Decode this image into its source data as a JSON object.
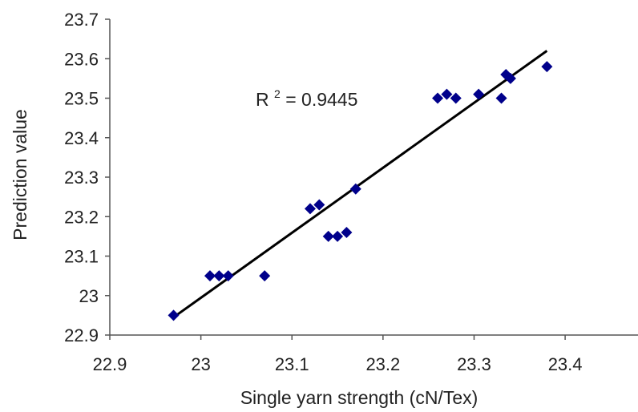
{
  "chart_data": {
    "type": "scatter",
    "title": "",
    "xlabel": "Single yarn strength (cN/Tex)",
    "ylabel": "Prediction value",
    "xlim": [
      22.9,
      23.48
    ],
    "ylim": [
      22.9,
      23.7
    ],
    "x_ticks": [
      22.9,
      23.0,
      23.1,
      23.2,
      23.3,
      23.4
    ],
    "x_tick_labels": [
      "22.9",
      "23",
      "23.1",
      "23.2",
      "23.3",
      "23.4"
    ],
    "y_ticks": [
      22.9,
      23.0,
      23.1,
      23.2,
      23.3,
      23.4,
      23.5,
      23.6,
      23.7
    ],
    "y_tick_labels": [
      "22.9",
      "23",
      "23.1",
      "23.2",
      "23.3",
      "23.4",
      "23.5",
      "23.6",
      "23.7"
    ],
    "grid": false,
    "legend": "none",
    "series": [
      {
        "marker": "diamond",
        "color": "#00008b",
        "points": [
          {
            "x": 22.97,
            "y": 22.95
          },
          {
            "x": 23.01,
            "y": 23.05
          },
          {
            "x": 23.02,
            "y": 23.05
          },
          {
            "x": 23.03,
            "y": 23.05
          },
          {
            "x": 23.07,
            "y": 23.05
          },
          {
            "x": 23.12,
            "y": 23.22
          },
          {
            "x": 23.13,
            "y": 23.23
          },
          {
            "x": 23.14,
            "y": 23.15
          },
          {
            "x": 23.15,
            "y": 23.15
          },
          {
            "x": 23.16,
            "y": 23.16
          },
          {
            "x": 23.17,
            "y": 23.27
          },
          {
            "x": 23.26,
            "y": 23.5
          },
          {
            "x": 23.27,
            "y": 23.51
          },
          {
            "x": 23.28,
            "y": 23.5
          },
          {
            "x": 23.305,
            "y": 23.51
          },
          {
            "x": 23.33,
            "y": 23.5
          },
          {
            "x": 23.335,
            "y": 23.56
          },
          {
            "x": 23.34,
            "y": 23.55
          },
          {
            "x": 23.38,
            "y": 23.58
          }
        ]
      }
    ],
    "trendline": {
      "type": "linear",
      "color": "#000000",
      "x": [
        22.97,
        23.38
      ],
      "y": [
        22.945,
        23.62
      ]
    },
    "annotation": {
      "text_base": "R",
      "text_sup": "2",
      "text_rest": " = 0.9445"
    }
  }
}
